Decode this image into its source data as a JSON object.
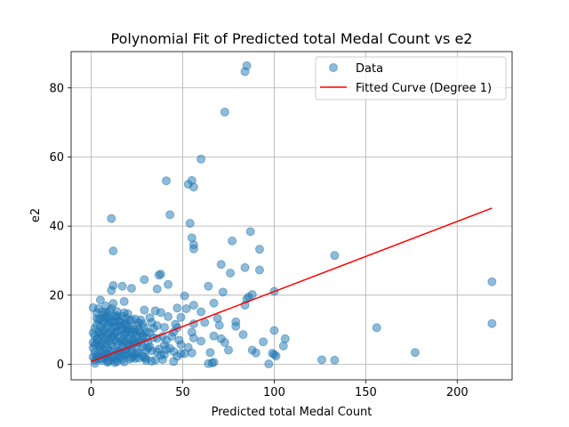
{
  "chart_data": {
    "type": "scatter",
    "title": "Polynomial Fit of Predicted total Medal Count vs e2",
    "xlabel": "Predicted total Medal Count",
    "ylabel": "e2",
    "xlim": [
      -11,
      230
    ],
    "ylim": [
      -4.5,
      90.5
    ],
    "xticks": [
      0,
      50,
      100,
      150,
      200
    ],
    "yticks": [
      0,
      20,
      40,
      60,
      80
    ],
    "grid": true,
    "legend_position": "top-right",
    "colors": {
      "data": "#1f77b4",
      "fit": "#ff0000"
    },
    "series": [
      {
        "name": "Data",
        "kind": "scatter",
        "points": [
          [
            85,
            86.4
          ],
          [
            84,
            84.7
          ],
          [
            73,
            73
          ],
          [
            60,
            59.4
          ],
          [
            41,
            53.1
          ],
          [
            55,
            53.2
          ],
          [
            53,
            52.1
          ],
          [
            56,
            51.3
          ],
          [
            43,
            43.3
          ],
          [
            11,
            42.2
          ],
          [
            54,
            40.8
          ],
          [
            87,
            38.4
          ],
          [
            55,
            36.6
          ],
          [
            77,
            35.7
          ],
          [
            56,
            34.6
          ],
          [
            56,
            33.4
          ],
          [
            92,
            33.3
          ],
          [
            12,
            32.8
          ],
          [
            133,
            31.5
          ],
          [
            71,
            28.9
          ],
          [
            84,
            28
          ],
          [
            92,
            27.3
          ],
          [
            76,
            26.4
          ],
          [
            38,
            26.1
          ],
          [
            37,
            25.8
          ],
          [
            29,
            24.5
          ],
          [
            219,
            23.9
          ],
          [
            42,
            23.1
          ],
          [
            12,
            22.8
          ],
          [
            17,
            22.6
          ],
          [
            64,
            22.6
          ],
          [
            22,
            22
          ],
          [
            36,
            21.8
          ],
          [
            11,
            21.4
          ],
          [
            72,
            20.9
          ],
          [
            100,
            21.1
          ],
          [
            88,
            20.2
          ],
          [
            51,
            19.8
          ],
          [
            86,
            19.5
          ],
          [
            5,
            18.6
          ],
          [
            18,
            18.2
          ],
          [
            85,
            18.9
          ],
          [
            67,
            17.7
          ],
          [
            56,
            17.1
          ],
          [
            84,
            17.1
          ],
          [
            1,
            16.4
          ],
          [
            52,
            16.1
          ],
          [
            47,
            16.3
          ],
          [
            29,
            15.7
          ],
          [
            35,
            15.5
          ],
          [
            38,
            15
          ],
          [
            60,
            15.2
          ],
          [
            8,
            15
          ],
          [
            3,
            14.9
          ],
          [
            69,
            13.3
          ],
          [
            42,
            13.8
          ],
          [
            14,
            13.6
          ],
          [
            49,
            13.6
          ],
          [
            79,
            12.3
          ],
          [
            62,
            12.1
          ],
          [
            56,
            11.7
          ],
          [
            219,
            11.8
          ],
          [
            70,
            11.3
          ],
          [
            79,
            11
          ],
          [
            40,
            10.7
          ],
          [
            156,
            10.6
          ],
          [
            47,
            10.6
          ],
          [
            100,
            9.8
          ],
          [
            55,
            9.3
          ],
          [
            32,
            9.1
          ],
          [
            45,
            9.3
          ],
          [
            19,
            9.4
          ],
          [
            83,
            8.6
          ],
          [
            67,
            8.2
          ],
          [
            44,
            8.1
          ],
          [
            28,
            8
          ],
          [
            56,
            7.6
          ],
          [
            106,
            7.4
          ],
          [
            71,
            7.4
          ],
          [
            36,
            7.5
          ],
          [
            48,
            7
          ],
          [
            94,
            6.5
          ],
          [
            60,
            6.7
          ],
          [
            73,
            6.3
          ],
          [
            25,
            6.2
          ],
          [
            105,
            5.3
          ],
          [
            40,
            5.6
          ],
          [
            31,
            4.7
          ],
          [
            53,
            4.9
          ],
          [
            41,
            4.3
          ],
          [
            75,
            4.1
          ],
          [
            88,
            4.1
          ],
          [
            19,
            4.2
          ],
          [
            90,
            3.3
          ],
          [
            99,
            3.2
          ],
          [
            177,
            3.4
          ],
          [
            65,
            3.4
          ],
          [
            55,
            3.3
          ],
          [
            45,
            3.7
          ],
          [
            49,
            3.1
          ],
          [
            100,
            2.8
          ],
          [
            101,
            2.4
          ],
          [
            38,
            2.6
          ],
          [
            23,
            2.3
          ],
          [
            26,
            1.8
          ],
          [
            126,
            1.3
          ],
          [
            133,
            1.2
          ],
          [
            39,
            1.4
          ],
          [
            30,
            1.1
          ],
          [
            33,
            0.9
          ],
          [
            67,
            0.6
          ],
          [
            66,
            0.4
          ],
          [
            64,
            0.2
          ],
          [
            97,
            0.1
          ],
          [
            45,
            0.8
          ],
          [
            13,
            0.5
          ],
          [
            2,
            0.3
          ],
          [
            9,
            0.6
          ],
          [
            2,
            1.2
          ],
          [
            3,
            2.6
          ],
          [
            4,
            5.4
          ],
          [
            5,
            3.8
          ],
          [
            6,
            7.9
          ],
          [
            7,
            1.8
          ],
          [
            8,
            10.6
          ],
          [
            9,
            4.5
          ],
          [
            10,
            6.7
          ],
          [
            11,
            2.2
          ],
          [
            12,
            12.4
          ],
          [
            13,
            8.9
          ],
          [
            14,
            3.6
          ],
          [
            15,
            5.8
          ],
          [
            16,
            9.7
          ],
          [
            17,
            1.4
          ],
          [
            18,
            6.2
          ],
          [
            19,
            11.8
          ],
          [
            20,
            2.9
          ],
          [
            21,
            7.3
          ],
          [
            22,
            4.8
          ],
          [
            23,
            10.2
          ],
          [
            24,
            1.7
          ],
          [
            25,
            8.5
          ],
          [
            26,
            3.4
          ],
          [
            27,
            12.8
          ],
          [
            28,
            5.1
          ],
          [
            29,
            2.1
          ],
          [
            30,
            9.3
          ],
          [
            31,
            6.4
          ],
          [
            32,
            13.5
          ],
          [
            33,
            3.9
          ],
          [
            34,
            7.7
          ],
          [
            35,
            1.2
          ],
          [
            36,
            11.2
          ],
          [
            37,
            4.4
          ],
          [
            39,
            8.1
          ],
          [
            40,
            2.8
          ],
          [
            41,
            6.9
          ],
          [
            43,
            4.6
          ],
          [
            46,
            11.6
          ],
          [
            47,
            2.3
          ],
          [
            49,
            5.7
          ],
          [
            51,
            3.1
          ],
          [
            1,
            4.7
          ],
          [
            2,
            8.3
          ],
          [
            3,
            11.4
          ],
          [
            4,
            2.4
          ],
          [
            5,
            13.2
          ],
          [
            6,
            3.3
          ],
          [
            7,
            9.6
          ],
          [
            8,
            5.9
          ],
          [
            9,
            14.1
          ],
          [
            10,
            1.1
          ],
          [
            11,
            7.8
          ],
          [
            12,
            4.3
          ],
          [
            13,
            10.8
          ],
          [
            14,
            6.6
          ],
          [
            15,
            2.6
          ],
          [
            16,
            12.1
          ],
          [
            17,
            4.9
          ],
          [
            18,
            8.8
          ],
          [
            19,
            3.2
          ],
          [
            20,
            14.6
          ],
          [
            21,
            5.4
          ],
          [
            22,
            1.9
          ],
          [
            23,
            7.1
          ],
          [
            24,
            13.1
          ],
          [
            25,
            3.6
          ],
          [
            26,
            9.9
          ],
          [
            27,
            6.1
          ],
          [
            28,
            2.4
          ],
          [
            29,
            10.6
          ],
          [
            30,
            4.1
          ],
          [
            3,
            6.1
          ],
          [
            4,
            9.2
          ],
          [
            5,
            1.6
          ],
          [
            6,
            12.7
          ],
          [
            7,
            4.2
          ],
          [
            8,
            7.4
          ],
          [
            9,
            2.9
          ],
          [
            10,
            15.4
          ],
          [
            11,
            5.6
          ],
          [
            12,
            8.2
          ],
          [
            13,
            1.3
          ],
          [
            14,
            11.1
          ],
          [
            15,
            4.0
          ],
          [
            16,
            6.8
          ],
          [
            17,
            13.9
          ],
          [
            18,
            2.7
          ],
          [
            19,
            9.1
          ],
          [
            20,
            5.3
          ],
          [
            21,
            12.6
          ],
          [
            22,
            3.7
          ],
          [
            23,
            8.7
          ],
          [
            24,
            6.3
          ],
          [
            2,
            3.4
          ],
          [
            3,
            7.2
          ],
          [
            4,
            12.9
          ],
          [
            5,
            5.1
          ],
          [
            6,
            9.8
          ],
          [
            7,
            14.3
          ],
          [
            8,
            2.2
          ],
          [
            9,
            11.5
          ],
          [
            10,
            3.9
          ],
          [
            11,
            16.1
          ],
          [
            12,
            6.9
          ],
          [
            13,
            2.7
          ],
          [
            14,
            15.3
          ],
          [
            15,
            8.0
          ],
          [
            16,
            3.5
          ],
          [
            17,
            10.3
          ],
          [
            18,
            14.9
          ],
          [
            19,
            6.6
          ],
          [
            20,
            9.9
          ],
          [
            21,
            1.5
          ],
          [
            1,
            2.1
          ],
          [
            1,
            6.3
          ],
          [
            1,
            9.1
          ],
          [
            2,
            5.6
          ],
          [
            2,
            10.4
          ],
          [
            3,
            1.6
          ],
          [
            3,
            13.3
          ],
          [
            4,
            7.6
          ],
          [
            5,
            10.9
          ],
          [
            6,
            5.9
          ],
          [
            7,
            11.9
          ],
          [
            8,
            13.6
          ],
          [
            9,
            8.8
          ],
          [
            10,
            12.2
          ],
          [
            11,
            9.6
          ],
          [
            12,
            1.8
          ],
          [
            13,
            13.9
          ],
          [
            14,
            9.3
          ],
          [
            15,
            12.6
          ],
          [
            16,
            1.9
          ],
          [
            17,
            7.1
          ],
          [
            18,
            11.6
          ],
          [
            19,
            13.4
          ],
          [
            20,
            7.6
          ],
          [
            21,
            10.1
          ],
          [
            22,
            12.9
          ],
          [
            23,
            5.9
          ],
          [
            24,
            9.4
          ],
          [
            25,
            11.2
          ],
          [
            26,
            6.8
          ],
          [
            27,
            9.1
          ],
          [
            28,
            11.7
          ],
          [
            30,
            7.6
          ],
          [
            32,
            5.1
          ],
          [
            34,
            10.4
          ],
          [
            36,
            3.6
          ],
          [
            4,
            16.1
          ],
          [
            6,
            15.2
          ],
          [
            8,
            16.9
          ],
          [
            10,
            13.3
          ],
          [
            12,
            17.6
          ],
          [
            14,
            14.1
          ],
          [
            7,
            6.8
          ],
          [
            9,
            0.9
          ],
          [
            11,
            12.3
          ],
          [
            5,
            8.6
          ],
          [
            6,
            1.1
          ],
          [
            8,
            3.0
          ],
          [
            10,
            9.0
          ],
          [
            12,
            10.8
          ],
          [
            14,
            0.8
          ],
          [
            16,
            11.3
          ],
          [
            18,
            0.7
          ],
          [
            20,
            11.1
          ],
          [
            22,
            9.5
          ],
          [
            24,
            3.0
          ],
          [
            26,
            12.0
          ],
          [
            28,
            8.3
          ],
          [
            30,
            1.7
          ],
          [
            33,
            12.1
          ]
        ]
      },
      {
        "name": "Fitted Curve (Degree 1)",
        "kind": "line",
        "points": [
          [
            0,
            0.8
          ],
          [
            219,
            45.2
          ]
        ]
      }
    ]
  }
}
